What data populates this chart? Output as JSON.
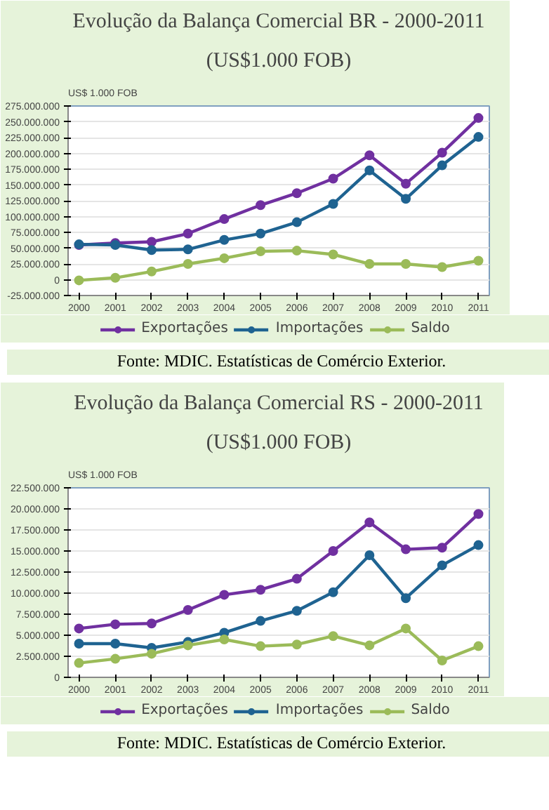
{
  "chart_data": [
    {
      "type": "line",
      "title": "Evolução da Balança Comercial BR - 2000-2011",
      "subtitle": "(US$1.000 FOB)",
      "ylabel": "US$ 1.000 FOB",
      "categories": [
        "2000",
        "2001",
        "2002",
        "2003",
        "2004",
        "2005",
        "2006",
        "2007",
        "2008",
        "2009",
        "2010",
        "2011"
      ],
      "series": [
        {
          "name": "Exportações",
          "color": "#7030a0",
          "values": [
            55000000,
            58000000,
            60000000,
            73000000,
            96000000,
            118000000,
            137000000,
            160000000,
            197000000,
            152000000,
            201000000,
            256000000
          ]
        },
        {
          "name": "Importações",
          "color": "#1f6391",
          "values": [
            56000000,
            55000000,
            47000000,
            48000000,
            63000000,
            73000000,
            91000000,
            120000000,
            173000000,
            128000000,
            181000000,
            226000000
          ]
        },
        {
          "name": "Saldo",
          "color": "#9bbb59",
          "values": [
            -1000000,
            3000000,
            13000000,
            25000000,
            34000000,
            45000000,
            46000000,
            40000000,
            25000000,
            25000000,
            20000000,
            30000000
          ]
        }
      ],
      "ylim": [
        -25000000,
        275000000
      ],
      "yticks": [
        {
          "value": -25000000,
          "label": "-25.000.000"
        },
        {
          "value": 0,
          "label": "0"
        },
        {
          "value": 25000000,
          "label": "25.000.000"
        },
        {
          "value": 50000000,
          "label": "50.000.000"
        },
        {
          "value": 75000000,
          "label": "75.000.000"
        },
        {
          "value": 100000000,
          "label": "100.000.000"
        },
        {
          "value": 125000000,
          "label": "125.000.000"
        },
        {
          "value": 150000000,
          "label": "150.000.000"
        },
        {
          "value": 175000000,
          "label": "175.000.000"
        },
        {
          "value": 200000000,
          "label": "200.000.000"
        },
        {
          "value": 225000000,
          "label": "225.000.000"
        },
        {
          "value": 250000000,
          "label": "250.000.000"
        },
        {
          "value": 275000000,
          "label": "275.000.000"
        }
      ],
      "grid": "y",
      "legend": "bottom",
      "marker": "circle",
      "line_style": "solid",
      "annotations": [
        "Fonte: MDIC. Estatísticas de Comércio Exterior."
      ]
    },
    {
      "type": "line",
      "title": "Evolução da Balança Comercial RS - 2000-2011",
      "subtitle": "(US$1.000 FOB)",
      "ylabel": "US$ 1.000 FOB",
      "categories": [
        "2000",
        "2001",
        "2002",
        "2003",
        "2004",
        "2005",
        "2006",
        "2007",
        "2008",
        "2009",
        "2010",
        "2011"
      ],
      "series": [
        {
          "name": "Exportações",
          "color": "#7030a0",
          "values": [
            5800000,
            6300000,
            6400000,
            8000000,
            9800000,
            10400000,
            11700000,
            15000000,
            18400000,
            15200000,
            15400000,
            19400000
          ]
        },
        {
          "name": "Importações",
          "color": "#1f6391",
          "values": [
            4000000,
            4000000,
            3500000,
            4200000,
            5300000,
            6700000,
            7900000,
            10100000,
            14500000,
            9400000,
            13300000,
            15700000
          ]
        },
        {
          "name": "Saldo",
          "color": "#9bbb59",
          "values": [
            1700000,
            2200000,
            2800000,
            3800000,
            4500000,
            3700000,
            3900000,
            4900000,
            3800000,
            5800000,
            2000000,
            3700000
          ]
        }
      ],
      "ylim": [
        0,
        22500000
      ],
      "yticks": [
        {
          "value": 0,
          "label": "0"
        },
        {
          "value": 2500000,
          "label": "2.500.000"
        },
        {
          "value": 5000000,
          "label": "5.000.000"
        },
        {
          "value": 7500000,
          "label": "7.500.000"
        },
        {
          "value": 10000000,
          "label": "10.000.000"
        },
        {
          "value": 12500000,
          "label": "12.500.000"
        },
        {
          "value": 15000000,
          "label": "15.000.000"
        },
        {
          "value": 17500000,
          "label": "17.500.000"
        },
        {
          "value": 20000000,
          "label": "20.000.000"
        },
        {
          "value": 22500000,
          "label": "22.500.000"
        }
      ],
      "grid": "y",
      "legend": "bottom",
      "marker": "circle",
      "line_style": "solid",
      "annotations": [
        "Fonte: MDIC. Estatísticas de Comércio Exterior."
      ]
    }
  ]
}
